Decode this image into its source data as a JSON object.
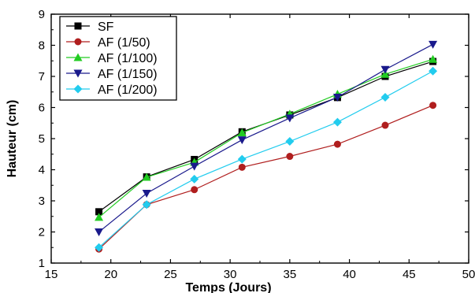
{
  "chart_data": {
    "type": "line",
    "title": "",
    "xlabel": "Temps (Jours)",
    "ylabel": "Hauteur (cm)",
    "xlim": [
      15,
      50
    ],
    "ylim": [
      1,
      9
    ],
    "xticks": [
      15,
      20,
      25,
      30,
      35,
      40,
      45,
      50
    ],
    "yticks": [
      1,
      2,
      3,
      4,
      5,
      6,
      7,
      8,
      9
    ],
    "grid": false,
    "legend_position": "top-left",
    "x": [
      19,
      23,
      27,
      31,
      35,
      39,
      43,
      47
    ],
    "series": [
      {
        "name": "SF",
        "marker": "square",
        "color": "#000000",
        "values": [
          2.65,
          3.77,
          4.33,
          5.22,
          5.76,
          6.32,
          7.0,
          7.48
        ]
      },
      {
        "name": "AF (1/50)",
        "marker": "circle",
        "color": "#b01e1e",
        "values": [
          1.45,
          2.88,
          3.36,
          4.08,
          4.43,
          4.82,
          5.43,
          6.07
        ]
      },
      {
        "name": "AF (1/100)",
        "marker": "triangle-up",
        "color": "#22cc22",
        "values": [
          2.47,
          3.76,
          4.24,
          5.19,
          5.79,
          6.43,
          7.07,
          7.55
        ]
      },
      {
        "name": "AF (1/150)",
        "marker": "triangle-down",
        "color": "#1a1a8c",
        "values": [
          2.0,
          3.24,
          4.11,
          4.96,
          5.66,
          6.33,
          7.22,
          8.03
        ]
      },
      {
        "name": "AF (1/200)",
        "marker": "diamond",
        "color": "#22ccee",
        "values": [
          1.5,
          2.88,
          3.7,
          4.34,
          4.91,
          5.53,
          6.33,
          7.17
        ]
      }
    ]
  }
}
